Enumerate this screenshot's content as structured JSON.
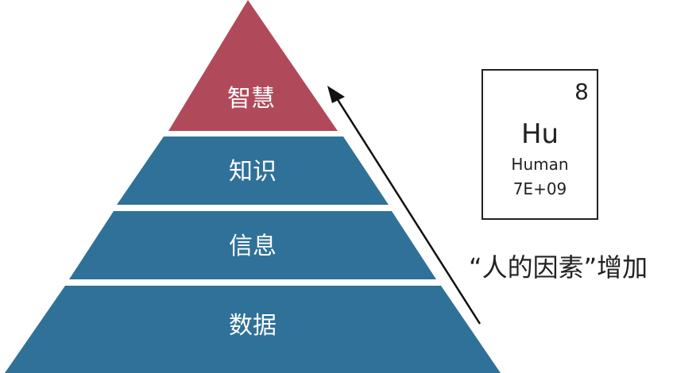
{
  "pyramid": {
    "tiers": [
      {
        "label": "智慧",
        "color": "#b04a5a"
      },
      {
        "label": "知识",
        "color": "#2f7198"
      },
      {
        "label": "信息",
        "color": "#2f7198"
      },
      {
        "label": "数据",
        "color": "#2f7198"
      }
    ]
  },
  "element": {
    "number": "8",
    "symbol": "Hu",
    "name": "Human",
    "value": "7E+09"
  },
  "caption": "“人的因素”增加"
}
